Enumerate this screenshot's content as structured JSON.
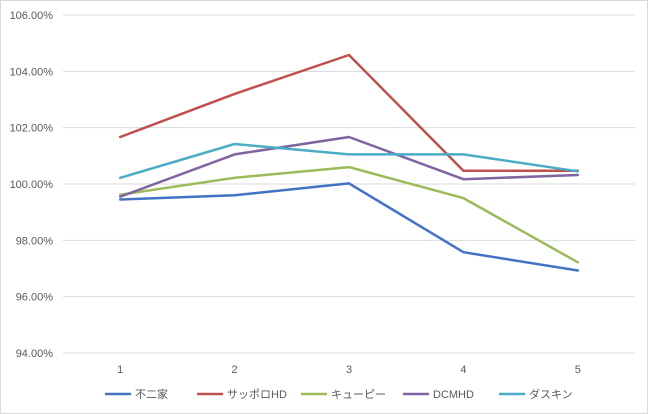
{
  "chart_data": {
    "type": "line",
    "title": "",
    "xlabel": "",
    "ylabel": "",
    "categories": [
      "1",
      "2",
      "3",
      "4",
      "5"
    ],
    "ylim": [
      94,
      106
    ],
    "yticks": [
      94,
      96,
      98,
      100,
      102,
      104,
      106
    ],
    "ytick_labels": [
      "94.00%",
      "96.00%",
      "98.00%",
      "100.00%",
      "102.00%",
      "104.00%",
      "106.00%"
    ],
    "grid": true,
    "legend_position": "bottom",
    "series": [
      {
        "name": "不二家",
        "color": "#4472c4",
        "values": [
          99.45,
          99.6,
          100.02,
          97.58,
          96.93
        ]
      },
      {
        "name": "サッポロHD",
        "color": "#c0504d",
        "values": [
          101.67,
          103.2,
          104.58,
          100.47,
          100.47
        ]
      },
      {
        "name": "キューピー",
        "color": "#9bbb59",
        "values": [
          99.62,
          100.22,
          100.6,
          99.5,
          97.22
        ]
      },
      {
        "name": "DCMHD",
        "color": "#8064a2",
        "values": [
          99.55,
          101.05,
          101.67,
          100.17,
          100.32
        ]
      },
      {
        "name": "ダスキン",
        "color": "#4bacc6",
        "values": [
          100.22,
          101.42,
          101.05,
          101.05,
          100.45
        ]
      }
    ]
  }
}
